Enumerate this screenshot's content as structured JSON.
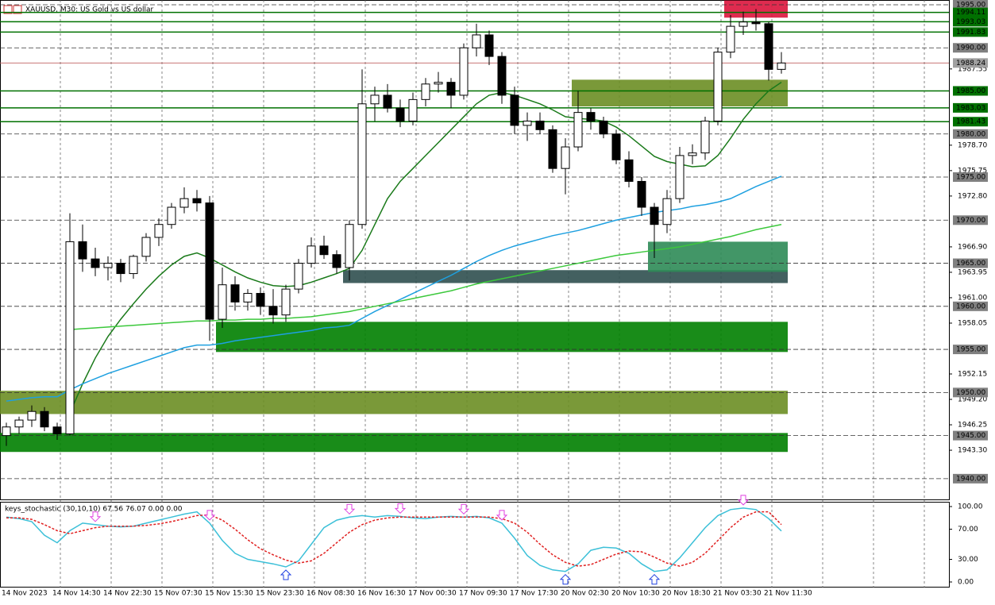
{
  "chart_data": {
    "type": "candlestick",
    "title": "XAUUSD, M30:  US Gold vs US dollar",
    "categories": [
      "14 Nov 2023",
      "14 Nov 14:30",
      "14 Nov 22:30",
      "15 Nov 07:30",
      "15 Nov 15:30",
      "15 Nov 23:30",
      "16 Nov 08:30",
      "16 Nov 16:30",
      "17 Nov 00:30",
      "17 Nov 09:30",
      "17 Nov 17:30",
      "20 Nov 02:30",
      "20 Nov 10:30",
      "20 Nov 18:30",
      "21 Nov 03:30",
      "21 Nov 11:30"
    ],
    "ylim": [
      1937.5,
      1995.55
    ],
    "yticks": [
      {
        "value": 1987.55,
        "label": "1987.55"
      },
      {
        "value": 1978.7,
        "label": "1978.70"
      },
      {
        "value": 1975.75,
        "label": "1975.75"
      },
      {
        "value": 1972.8,
        "label": "1972.80"
      },
      {
        "value": 1966.9,
        "label": "1966.90"
      },
      {
        "value": 1963.95,
        "label": "1963.95"
      },
      {
        "value": 1961,
        "label": "1961.00"
      },
      {
        "value": 1958.05,
        "label": "1958.05"
      },
      {
        "value": 1952.15,
        "label": "1952.15"
      },
      {
        "value": 1949.2,
        "label": "1949.20"
      },
      {
        "value": 1946.25,
        "label": "1946.25"
      },
      {
        "value": 1943.3,
        "label": "1943.30"
      }
    ],
    "round_levels": [
      {
        "value": 1995,
        "label": "1995.00"
      },
      {
        "value": 1990,
        "label": "1990.00"
      },
      {
        "value": 1980,
        "label": "1980.00"
      },
      {
        "value": 1975,
        "label": "1975.00"
      },
      {
        "value": 1970,
        "label": "1970.00"
      },
      {
        "value": 1965,
        "label": "1965.00"
      },
      {
        "value": 1960,
        "label": "1960.00"
      },
      {
        "value": 1955,
        "label": "1955.00"
      },
      {
        "value": 1950,
        "label": "1950.00"
      },
      {
        "value": 1945,
        "label": "1945.00"
      },
      {
        "value": 1940,
        "label": "1940.00"
      }
    ],
    "sr_levels": [
      1994.11,
      1993.03,
      1991.83,
      {
        "value": 1985,
        "label": "1985.00"
      },
      1983.03,
      1981.43
    ],
    "sr_color": "#007000",
    "last_price": 1988.24,
    "last_color": "#c06060",
    "open": [
      1945.0,
      1946.0,
      1946.8,
      1947.8,
      1946.0,
      1945.2,
      1967.5,
      1965.5,
      1964.5,
      1965.0,
      1963.8,
      1965.8,
      1968.0,
      1969.5,
      1971.5,
      1972.5,
      1972.0,
      1958.5,
      1962.5,
      1960.5,
      1961.5,
      1960.0,
      1959.0,
      1962.0,
      1965.0,
      1967.0,
      1966.0,
      1964.5,
      1969.5,
      1983.5,
      1984.5,
      1983.0,
      1981.5,
      1984.0,
      1985.8,
      1986.0,
      1984.5,
      1990.0,
      1991.5,
      1989.0,
      1984.5,
      1981.0,
      1981.5,
      1980.5,
      1976.0,
      1978.5,
      1982.5,
      1981.5,
      1980.0,
      1977.0,
      1974.5,
      1971.5,
      1969.5,
      1972.5,
      1977.5,
      1977.8,
      1981.5,
      1989.5,
      1992.5,
      1993.0,
      1992.8,
      1987.5
    ],
    "high": [
      1946.5,
      1947.2,
      1948.5,
      1948.3,
      1946.5,
      1970.8,
      1969.5,
      1966.8,
      1965.8,
      1965.5,
      1966.0,
      1968.5,
      1970.2,
      1972.0,
      1973.8,
      1973.5,
      1972.8,
      1964.5,
      1963.5,
      1962.0,
      1962.2,
      1962.0,
      1962.5,
      1965.5,
      1968.0,
      1968.2,
      1966.5,
      1970.0,
      1987.5,
      1985.5,
      1985.8,
      1984.0,
      1984.8,
      1986.5,
      1987.2,
      1986.5,
      1990.5,
      1992.8,
      1992.0,
      1989.5,
      1985.5,
      1982.5,
      1982.5,
      1981.0,
      1979.5,
      1985.0,
      1983.0,
      1982.0,
      1980.5,
      1978.0,
      1975.0,
      1972.0,
      1973.5,
      1978.5,
      1978.8,
      1982.0,
      1990.0,
      1993.8,
      1994.2,
      1994.5,
      1993.0,
      1989.5
    ],
    "low": [
      1943.8,
      1945.2,
      1946.0,
      1945.5,
      1944.5,
      1945.0,
      1964.0,
      1963.5,
      1963.0,
      1962.8,
      1963.2,
      1965.2,
      1967.0,
      1969.0,
      1970.8,
      1971.0,
      1956.0,
      1957.5,
      1959.5,
      1959.5,
      1959.0,
      1958.0,
      1958.2,
      1961.5,
      1964.5,
      1965.5,
      1963.8,
      1963.0,
      1969.0,
      1981.5,
      1982.5,
      1980.8,
      1981.0,
      1983.2,
      1984.8,
      1983.0,
      1984.0,
      1989.0,
      1988.0,
      1983.5,
      1980.0,
      1979.2,
      1980.0,
      1975.5,
      1973.0,
      1978.0,
      1980.5,
      1979.5,
      1976.5,
      1973.8,
      1970.5,
      1965.6,
      1968.5,
      1972.0,
      1976.5,
      1977.0,
      1981.0,
      1988.8,
      1991.5,
      1992.0,
      1986.2,
      1987.0
    ],
    "close": [
      1946.0,
      1946.8,
      1947.8,
      1946.0,
      1945.2,
      1967.5,
      1965.5,
      1964.5,
      1965.0,
      1963.8,
      1965.8,
      1968.0,
      1969.5,
      1971.5,
      1972.5,
      1972.0,
      1958.5,
      1962.5,
      1960.5,
      1961.5,
      1960.0,
      1959.0,
      1962.0,
      1965.0,
      1967.0,
      1966.0,
      1964.5,
      1969.5,
      1983.5,
      1984.5,
      1983.0,
      1981.5,
      1984.0,
      1985.8,
      1986.0,
      1984.5,
      1990.0,
      1991.5,
      1989.0,
      1984.5,
      1981.0,
      1981.5,
      1980.5,
      1976.0,
      1978.5,
      1982.5,
      1981.5,
      1980.0,
      1977.0,
      1974.5,
      1971.5,
      1969.5,
      1972.5,
      1977.5,
      1977.8,
      1981.5,
      1989.5,
      1992.5,
      1993.0,
      1992.8,
      1987.5,
      1988.24
    ],
    "lines": [
      {
        "color": "#1a7a1a",
        "values": [
          null,
          null,
          null,
          null,
          null,
          1947.6,
          1951.0,
          1954.0,
          1956.5,
          1958.5,
          1960.3,
          1962.0,
          1963.5,
          1964.8,
          1965.8,
          1966.2,
          1965.6,
          1964.8,
          1964.0,
          1963.3,
          1962.8,
          1962.4,
          1962.3,
          1962.4,
          1962.8,
          1963.3,
          1963.8,
          1964.4,
          1966.5,
          1969.5,
          1972.5,
          1974.5,
          1976.0,
          1977.5,
          1979.0,
          1980.5,
          1982.0,
          1983.5,
          1984.5,
          1984.8,
          1984.5,
          1984.0,
          1983.5,
          1982.8,
          1982.0,
          1981.8,
          1981.7,
          1981.5,
          1980.8,
          1979.8,
          1978.6,
          1977.4,
          1976.8,
          1976.5,
          1976.2,
          1976.3,
          1977.5,
          1979.5,
          1981.7,
          1983.5,
          1985.0,
          1986.0
        ]
      },
      {
        "color": "#1ea0e0",
        "values": [
          1949.0,
          1949.2,
          1949.4,
          1949.5,
          1949.5,
          1950.3,
          1951.0,
          1951.6,
          1952.2,
          1952.7,
          1953.2,
          1953.7,
          1954.2,
          1954.7,
          1955.2,
          1955.5,
          1955.5,
          1955.7,
          1956.0,
          1956.2,
          1956.4,
          1956.6,
          1956.8,
          1957.0,
          1957.2,
          1957.5,
          1957.6,
          1957.8,
          1958.6,
          1959.4,
          1960.1,
          1960.8,
          1961.5,
          1962.2,
          1962.9,
          1963.6,
          1964.4,
          1965.2,
          1965.9,
          1966.5,
          1967.0,
          1967.4,
          1967.8,
          1968.2,
          1968.5,
          1968.8,
          1969.2,
          1969.6,
          1970.0,
          1970.3,
          1970.6,
          1970.9,
          1971.1,
          1971.3,
          1971.6,
          1971.8,
          1972.1,
          1972.5,
          1973.2,
          1973.9,
          1974.5,
          1975.1
        ]
      },
      {
        "color": "#3cc83c",
        "values": [
          null,
          null,
          null,
          null,
          null,
          1957.3,
          1957.4,
          1957.5,
          1957.6,
          1957.7,
          1957.8,
          1957.9,
          1958.0,
          1958.1,
          1958.2,
          1958.3,
          1958.3,
          1958.4,
          1958.4,
          1958.5,
          1958.5,
          1958.6,
          1958.6,
          1958.7,
          1958.8,
          1959.0,
          1959.2,
          1959.4,
          1959.7,
          1960.0,
          1960.3,
          1960.6,
          1960.9,
          1961.2,
          1961.5,
          1961.8,
          1962.2,
          1962.6,
          1962.9,
          1963.2,
          1963.5,
          1963.8,
          1964.1,
          1964.4,
          1964.7,
          1965.0,
          1965.3,
          1965.6,
          1965.9,
          1966.1,
          1966.3,
          1966.5,
          1966.7,
          1966.9,
          1967.2,
          1967.5,
          1967.8,
          1968.1,
          1968.5,
          1968.9,
          1969.2,
          1969.5
        ]
      }
    ],
    "zones": [
      {
        "low": 1947.5,
        "high": 1950.2,
        "start": 0,
        "color": "#6b8e23"
      },
      {
        "low": 1943.1,
        "high": 1945.3,
        "start": 0,
        "color": "#008000"
      },
      {
        "low": 1954.7,
        "high": 1958.2,
        "start": 17,
        "color": "#008000"
      },
      {
        "low": 1962.7,
        "high": 1964.2,
        "start": 27,
        "color": "#2f4f4f"
      },
      {
        "low": 1964.0,
        "high": 1967.5,
        "start": 51,
        "color": "#2e8b57"
      },
      {
        "low": 1983.2,
        "high": 1986.3,
        "start": 45,
        "color": "#6b8e23"
      },
      {
        "low": 1993.5,
        "high": 1995.5,
        "start": 57,
        "color": "#dc143c"
      }
    ],
    "stoch": {
      "label": "keys_stochastic (30,10,10) 67.56 76.07 0.00 0.00",
      "ylim": [
        0,
        100
      ],
      "yticks": [
        {
          "value": 100,
          "label": "100.00"
        },
        {
          "value": 70,
          "label": "70.00"
        },
        {
          "value": 30,
          "label": "30.00"
        },
        {
          "value": 0,
          "label": "0.00"
        }
      ],
      "main_color": "#3cc0d8",
      "signal_color": "#e02020",
      "main": [
        86,
        84,
        80,
        62,
        52,
        68,
        78,
        76,
        74,
        73,
        74,
        78,
        82,
        86,
        90,
        93,
        78,
        55,
        38,
        30,
        27,
        24,
        20,
        28,
        50,
        72,
        82,
        86,
        88,
        86,
        88,
        87,
        85,
        84,
        86,
        87,
        86,
        87,
        85,
        78,
        58,
        35,
        22,
        16,
        14,
        24,
        42,
        46,
        45,
        38,
        24,
        14,
        16,
        32,
        52,
        72,
        88,
        96,
        98,
        96,
        84,
        67.56
      ],
      "signal": [
        85,
        85,
        83,
        76,
        68,
        64,
        68,
        72,
        74,
        74,
        74,
        75,
        77,
        80,
        84,
        88,
        89,
        82,
        70,
        56,
        44,
        36,
        29,
        25,
        28,
        38,
        52,
        66,
        76,
        82,
        85,
        86,
        86,
        86,
        86,
        86,
        86,
        86,
        86,
        84,
        78,
        66,
        50,
        36,
        26,
        21,
        23,
        30,
        37,
        41,
        40,
        33,
        25,
        21,
        26,
        38,
        55,
        72,
        86,
        93,
        93,
        76.07
      ],
      "signals_down": [
        7,
        16,
        27,
        31,
        36,
        39,
        58
      ],
      "signals_up": [
        22,
        44,
        51
      ]
    }
  }
}
